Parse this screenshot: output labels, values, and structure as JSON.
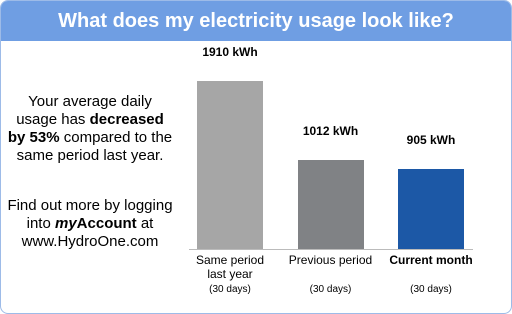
{
  "header": {
    "title": "What does my electricity usage look like?"
  },
  "message": {
    "before": "Your average daily usage has",
    "highlight": "decreased by 53%",
    "after": "compared to the same period last year."
  },
  "link": {
    "before": "Find out more by logging into",
    "italic": "my",
    "bold": "Account",
    "after": "at www.HydroOne.com"
  },
  "chart_data": {
    "type": "bar",
    "categories": [
      "Same period last year",
      "Previous period",
      "Current month"
    ],
    "category_notes": [
      "(30 days)",
      "(30 days)",
      "(30 days)"
    ],
    "values": [
      1910,
      1012,
      905
    ],
    "value_labels": [
      "1910 kWh",
      "1012 kWh",
      "905 kWh"
    ],
    "colors": [
      "#a6a6a6",
      "#808285",
      "#1c58a6"
    ]
  }
}
